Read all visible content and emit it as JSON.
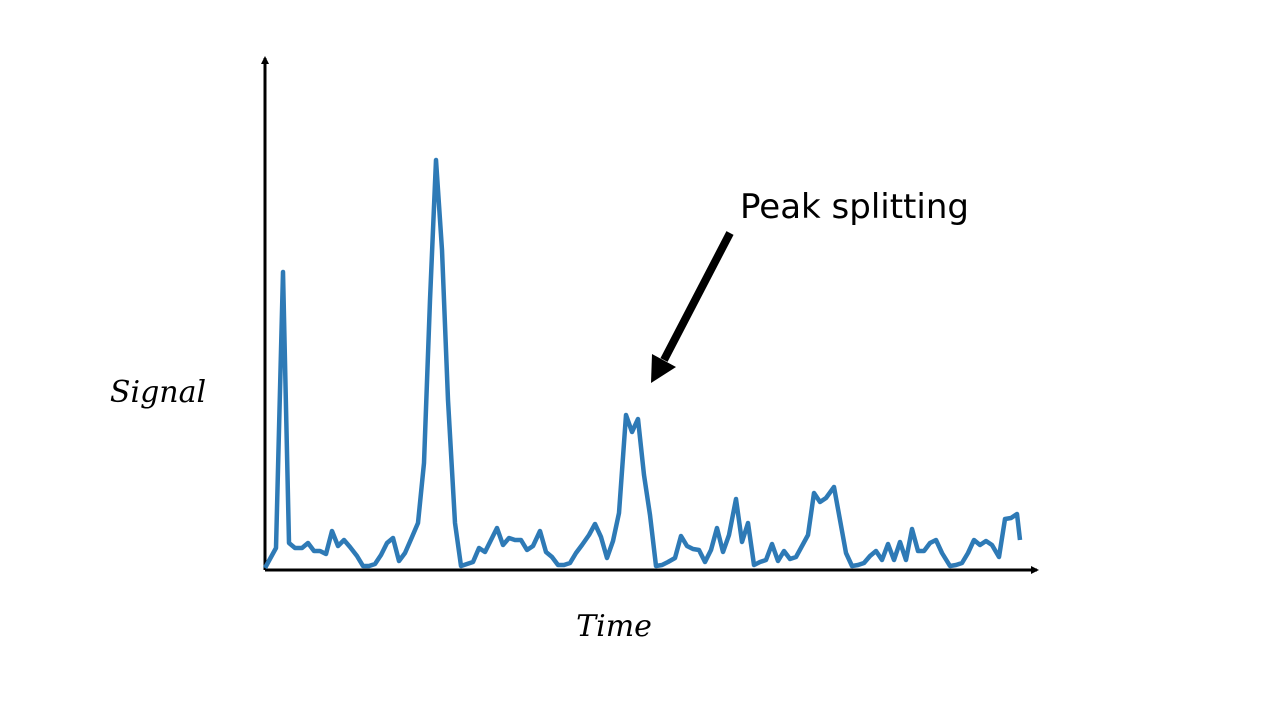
{
  "chart_data": {
    "type": "line",
    "x_label": "Time",
    "y_label": "Signal",
    "annotation": "Peak splitting",
    "color": "#2e7ab6",
    "xlim": [
      0,
      770
    ],
    "ylim": [
      0,
      510
    ],
    "x": [
      0,
      11,
      18,
      24,
      30,
      37,
      43,
      49,
      55,
      61,
      67,
      73,
      79,
      85,
      92,
      98,
      104,
      110,
      116,
      122,
      128,
      134,
      140,
      147,
      153,
      159,
      165,
      171,
      177,
      183,
      190,
      196,
      202,
      208,
      214,
      220,
      226,
      232,
      238,
      244,
      250,
      256,
      262,
      268,
      275,
      281,
      287,
      293,
      299,
      305,
      311,
      317,
      324,
      330,
      336,
      342,
      348,
      354,
      361,
      367,
      373,
      379,
      385,
      391,
      397,
      403,
      410,
      416,
      422,
      428,
      434,
      440,
      446,
      452,
      458,
      464,
      471,
      477,
      483,
      489,
      495,
      501,
      507,
      513,
      519,
      525,
      531,
      537,
      543,
      549,
      555,
      561,
      569,
      575,
      581,
      587,
      593,
      599,
      605,
      611,
      617,
      623,
      629,
      635,
      641,
      647,
      653,
      659,
      665,
      671,
      677,
      685,
      691,
      697,
      703,
      709,
      715,
      721,
      727,
      734,
      740,
      746,
      752,
      755
    ],
    "values": [
      2,
      22,
      298,
      27,
      22,
      22,
      27,
      19,
      19,
      16,
      39,
      24,
      30,
      23,
      14,
      4,
      4,
      6,
      15,
      27,
      32,
      9,
      17,
      33,
      47,
      107,
      270,
      410,
      320,
      170,
      47,
      4,
      6,
      8,
      22,
      18,
      30,
      42,
      25,
      32,
      30,
      30,
      20,
      24,
      39,
      18,
      13,
      5,
      5,
      7,
      17,
      25,
      35,
      46,
      33,
      12,
      29,
      57,
      155,
      138,
      151,
      95,
      55,
      4,
      5,
      8,
      12,
      34,
      24,
      21,
      20,
      8,
      20,
      42,
      18,
      35,
      71,
      28,
      47,
      5,
      8,
      10,
      26,
      9,
      19,
      11,
      13,
      24,
      35,
      77,
      68,
      72,
      83,
      50,
      17,
      4,
      5,
      7,
      14,
      19,
      10,
      26,
      10,
      28,
      10,
      41,
      19,
      19,
      27,
      30,
      17,
      4,
      5,
      7,
      17,
      30,
      25,
      29,
      25,
      13,
      51,
      52,
      56,
      30
    ]
  }
}
